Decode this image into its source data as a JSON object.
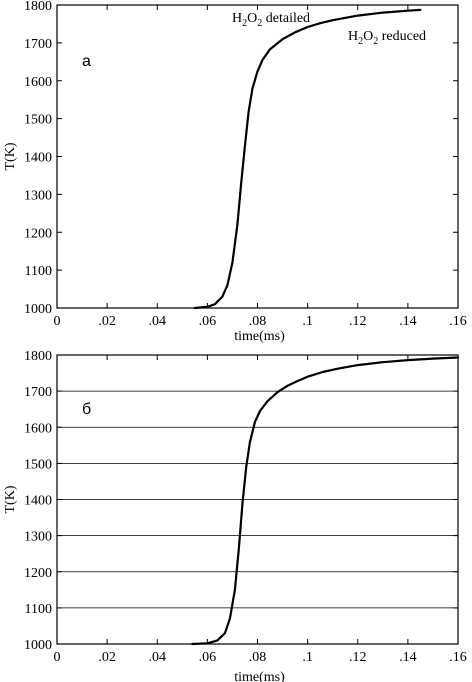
{
  "chart_data": [
    {
      "type": "line",
      "panel_label": "a",
      "xlabel": "time(ms)",
      "ylabel": "T(K)",
      "xlim": [
        0,
        0.16
      ],
      "ylim": [
        1000,
        1800
      ],
      "xticks": [
        0,
        0.02,
        0.04,
        0.06,
        0.08,
        0.1,
        0.12,
        0.14,
        0.16
      ],
      "yticks": [
        1000,
        1100,
        1200,
        1300,
        1400,
        1500,
        1600,
        1700,
        1800
      ],
      "grid": false,
      "annotations": [
        {
          "base": "H",
          "sub1": "2",
          "mid": "O",
          "sub2": "2",
          "rest": " detailed"
        },
        {
          "base": "H",
          "sub1": "2",
          "mid": "O",
          "sub2": "2",
          "rest": " reduced"
        }
      ],
      "series": [
        {
          "x": [
            0.055,
            0.06,
            0.063,
            0.066,
            0.068,
            0.07,
            0.072,
            0.0735,
            0.075,
            0.0765,
            0.078,
            0.08,
            0.082,
            0.085,
            0.09,
            0.095,
            0.1,
            0.105,
            0.11,
            0.12,
            0.13,
            0.14,
            0.145
          ],
          "y": [
            1000,
            1003,
            1010,
            1030,
            1060,
            1120,
            1220,
            1330,
            1430,
            1520,
            1580,
            1625,
            1655,
            1683,
            1710,
            1728,
            1742,
            1752,
            1760,
            1772,
            1780,
            1785,
            1787
          ]
        }
      ]
    },
    {
      "type": "line",
      "panel_label": "б",
      "xlabel": "time(ms)",
      "ylabel": "T(K)",
      "xlim": [
        0,
        0.16
      ],
      "ylim": [
        1000,
        1800
      ],
      "xticks": [
        0,
        0.02,
        0.04,
        0.06,
        0.08,
        0.1,
        0.12,
        0.14,
        0.16
      ],
      "yticks": [
        1000,
        1100,
        1200,
        1300,
        1400,
        1500,
        1600,
        1700,
        1800
      ],
      "grid": true,
      "annotations": [],
      "series": [
        {
          "x": [
            0.054,
            0.06,
            0.064,
            0.067,
            0.069,
            0.071,
            0.0725,
            0.074,
            0.0755,
            0.077,
            0.079,
            0.081,
            0.084,
            0.088,
            0.092,
            0.096,
            0.1,
            0.106,
            0.112,
            0.12,
            0.13,
            0.14,
            0.15,
            0.16
          ],
          "y": [
            1000,
            1002,
            1010,
            1030,
            1070,
            1150,
            1260,
            1390,
            1490,
            1560,
            1615,
            1645,
            1672,
            1697,
            1715,
            1728,
            1740,
            1753,
            1762,
            1772,
            1780,
            1786,
            1790,
            1793
          ]
        }
      ]
    }
  ]
}
